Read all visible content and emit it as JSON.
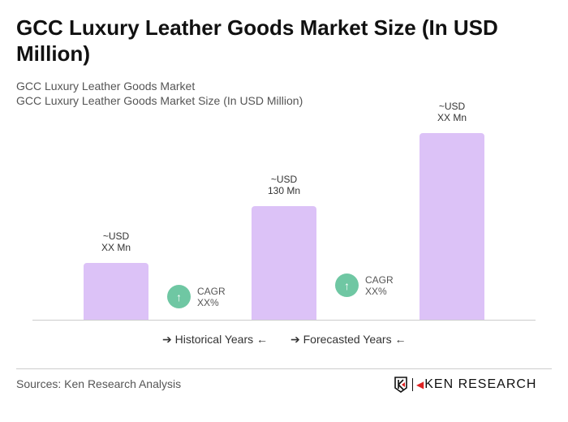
{
  "title": "GCC Luxury Leather Goods Market Size (In USD Million)",
  "subtitle1": "GCC Luxury Leather Goods Market",
  "subtitle2": "GCC Luxury Leather Goods Market Size (In USD Million)",
  "chart_data": {
    "type": "bar",
    "categories": [
      "",
      "",
      ""
    ],
    "values": [
      65,
      130,
      214
    ],
    "data_labels": [
      [
        "~USD",
        "XX Mn"
      ],
      [
        "~USD",
        "130 Mn"
      ],
      [
        "~USD",
        "XX Mn"
      ]
    ],
    "bar_color": "#dcc2f7",
    "cagr": [
      {
        "label": "CAGR",
        "value": "XX%"
      },
      {
        "label": "CAGR",
        "value": "XX%"
      }
    ],
    "cagr_color": "#6fc7a3",
    "legend": [
      "Historical Years",
      "Forecasted Years"
    ],
    "grid": false
  },
  "source": "Sources: Ken Research Analysis",
  "logo": "KEN RESEARCH"
}
